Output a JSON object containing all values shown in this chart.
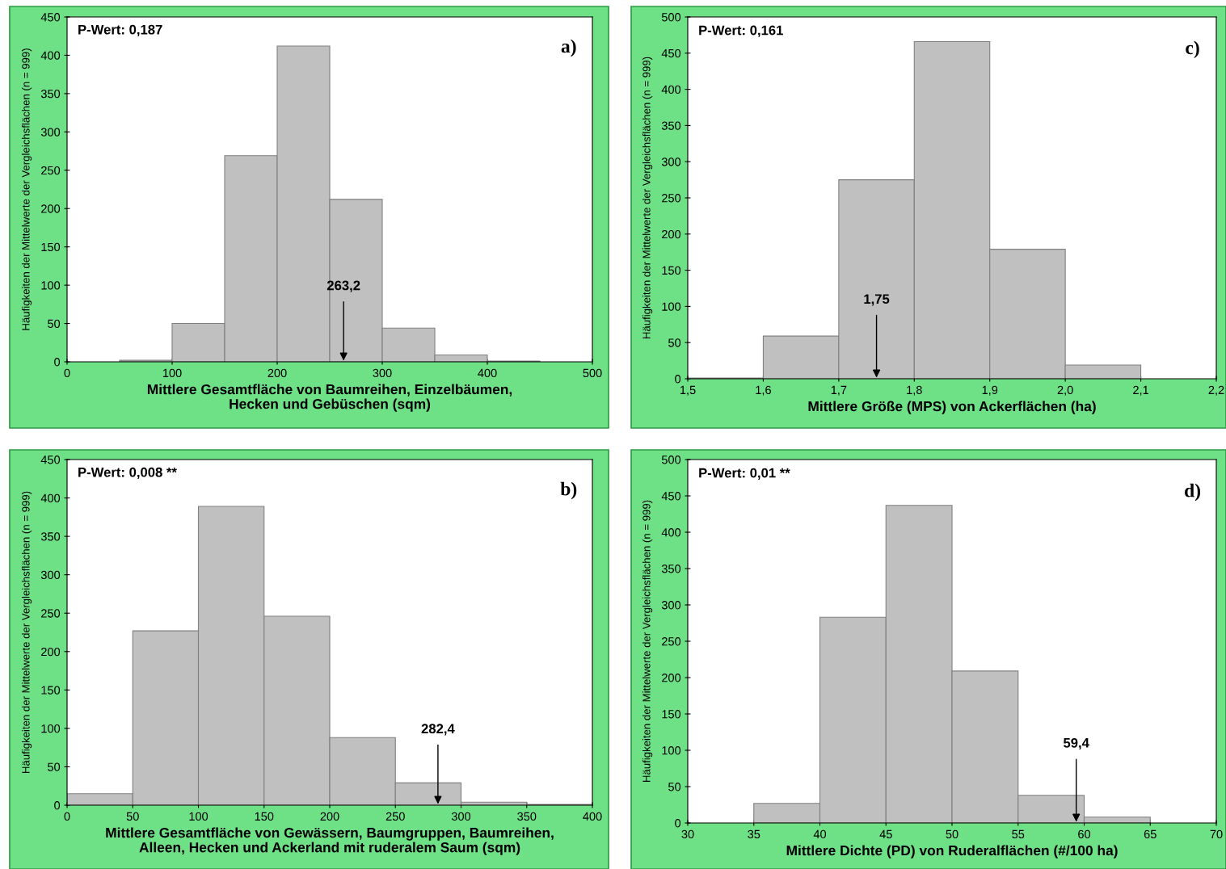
{
  "chart_data": [
    {
      "type": "histogram",
      "xlabel": "Mittlere Gesamtfläche von Baumreihen, Einzelbäumen,\nHecken und Gebüschen (sqm)",
      "ylabel": "Häufigkeiten der Mittelwerte der Vergleichsflächen (n = 999)",
      "bins": [
        50,
        100,
        150,
        200,
        250,
        300,
        350,
        400,
        450
      ],
      "values": [
        2,
        50,
        269,
        412,
        212,
        44,
        9,
        1
      ],
      "color": "#c0c0c0",
      "xlim": [
        0,
        500
      ],
      "xticks": [
        0,
        100,
        200,
        300,
        400,
        500
      ],
      "ylim": [
        0,
        450
      ],
      "yticks": [
        0,
        50,
        100,
        150,
        200,
        250,
        300,
        350,
        400,
        450
      ],
      "annotations": [
        "P-Wert: 0,187",
        "a)",
        {
          "text": "263,2",
          "x": 263.2,
          "y": 0
        }
      ]
    },
    {
      "type": "histogram",
      "xlabel": "Mittlere Größe (MPS) von Ackerflächen (ha)",
      "ylabel": "Häufigkeiten der Mittelwerte der Vergleichsflächen (n = 999)",
      "bins": [
        1.5,
        1.6,
        1.7,
        1.8,
        1.9,
        2.0,
        2.1
      ],
      "values": [
        1,
        59,
        275,
        466,
        179,
        19
      ],
      "color": "#c0c0c0",
      "xlim": [
        1.5,
        2.2
      ],
      "xticks": [
        {
          "value": 1.5,
          "label": "1,5"
        },
        {
          "value": 1.6,
          "label": "1,6"
        },
        {
          "value": 1.7,
          "label": "1,7"
        },
        {
          "value": 1.8,
          "label": "1,8"
        },
        {
          "value": 1.9,
          "label": "1,9"
        },
        {
          "value": 2.0,
          "label": "2,0"
        },
        {
          "value": 2.1,
          "label": "2,1"
        },
        {
          "value": 2.2,
          "label": "2,2"
        }
      ],
      "ylim": [
        0,
        500
      ],
      "yticks": [
        0,
        50,
        100,
        150,
        200,
        250,
        300,
        350,
        400,
        450,
        500
      ],
      "annotations": [
        "P-Wert: 0,161",
        "c)",
        {
          "text": "1,75",
          "x": 1.75,
          "y": 0
        }
      ]
    },
    {
      "type": "histogram",
      "xlabel": "Mittlere Gesamtfläche von Gewässern, Baumgruppen, Baumreihen,\nAlleen, Hecken und Ackerland mit ruderalem Saum (sqm)",
      "ylabel": "Häufigkeiten der Mittelwerte der Vergleichsflächen (n = 999)",
      "bins": [
        0,
        50,
        100,
        150,
        200,
        250,
        300,
        350,
        400
      ],
      "values": [
        15,
        227,
        389,
        246,
        88,
        29,
        4,
        1
      ],
      "color": "#c0c0c0",
      "xlim": [
        0,
        400
      ],
      "xticks": [
        0,
        50,
        100,
        150,
        200,
        250,
        300,
        350,
        400
      ],
      "ylim": [
        0,
        450
      ],
      "yticks": [
        0,
        50,
        100,
        150,
        200,
        250,
        300,
        350,
        400,
        450
      ],
      "annotations": [
        "P-Wert: 0,008 **",
        "b)",
        {
          "text": "282,4",
          "x": 282.4,
          "y": 0
        }
      ]
    },
    {
      "type": "histogram",
      "xlabel": "Mittlere Dichte (PD) von Ruderalflächen (#/100 ha)",
      "ylabel": "Häufigkeiten der Mittelwerte der Vergleichsflächen (n = 999)",
      "bins": [
        35,
        40,
        45,
        50,
        55,
        60,
        65
      ],
      "values": [
        27,
        283,
        437,
        209,
        38,
        8
      ],
      "color": "#c0c0c0",
      "xlim": [
        30,
        70
      ],
      "xticks": [
        30,
        35,
        40,
        45,
        50,
        55,
        60,
        65,
        70
      ],
      "ylim": [
        0,
        500
      ],
      "yticks": [
        0,
        50,
        100,
        150,
        200,
        250,
        300,
        350,
        400,
        450,
        500
      ],
      "annotations": [
        "P-Wert: 0,01 **",
        "d)",
        {
          "text": "59,4",
          "x": 59.4,
          "y": 0
        }
      ]
    }
  ]
}
